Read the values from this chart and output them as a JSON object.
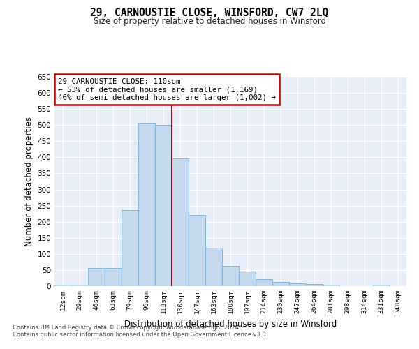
{
  "title": "29, CARNOUSTIE CLOSE, WINSFORD, CW7 2LQ",
  "subtitle": "Size of property relative to detached houses in Winsford",
  "xlabel": "Distribution of detached houses by size in Winsford",
  "ylabel": "Number of detached properties",
  "bar_color": "#c5d9ee",
  "bar_edge_color": "#7aadd4",
  "background_color": "#ffffff",
  "plot_bg_color": "#e8eef8",
  "grid_color": "#ffffff",
  "vline_color": "#8b0000",
  "annotation_text": "29 CARNOUSTIE CLOSE: 110sqm\n← 53% of detached houses are smaller (1,169)\n46% of semi-detached houses are larger (1,002) →",
  "annotation_box_color": "#cc0000",
  "categories": [
    "12sqm",
    "29sqm",
    "46sqm",
    "63sqm",
    "79sqm",
    "96sqm",
    "113sqm",
    "130sqm",
    "147sqm",
    "163sqm",
    "180sqm",
    "197sqm",
    "214sqm",
    "230sqm",
    "247sqm",
    "264sqm",
    "281sqm",
    "298sqm",
    "314sqm",
    "331sqm",
    "348sqm"
  ],
  "bar_heights": [
    5,
    5,
    57,
    57,
    237,
    507,
    500,
    397,
    222,
    120,
    62,
    46,
    21,
    12,
    9,
    7,
    5,
    0,
    0,
    5,
    0
  ],
  "ylim": [
    0,
    650
  ],
  "yticks": [
    0,
    50,
    100,
    150,
    200,
    250,
    300,
    350,
    400,
    450,
    500,
    550,
    600,
    650
  ],
  "footer1": "Contains HM Land Registry data © Crown copyright and database right 2024.",
  "footer2": "Contains public sector information licensed under the Open Government Licence v3.0."
}
